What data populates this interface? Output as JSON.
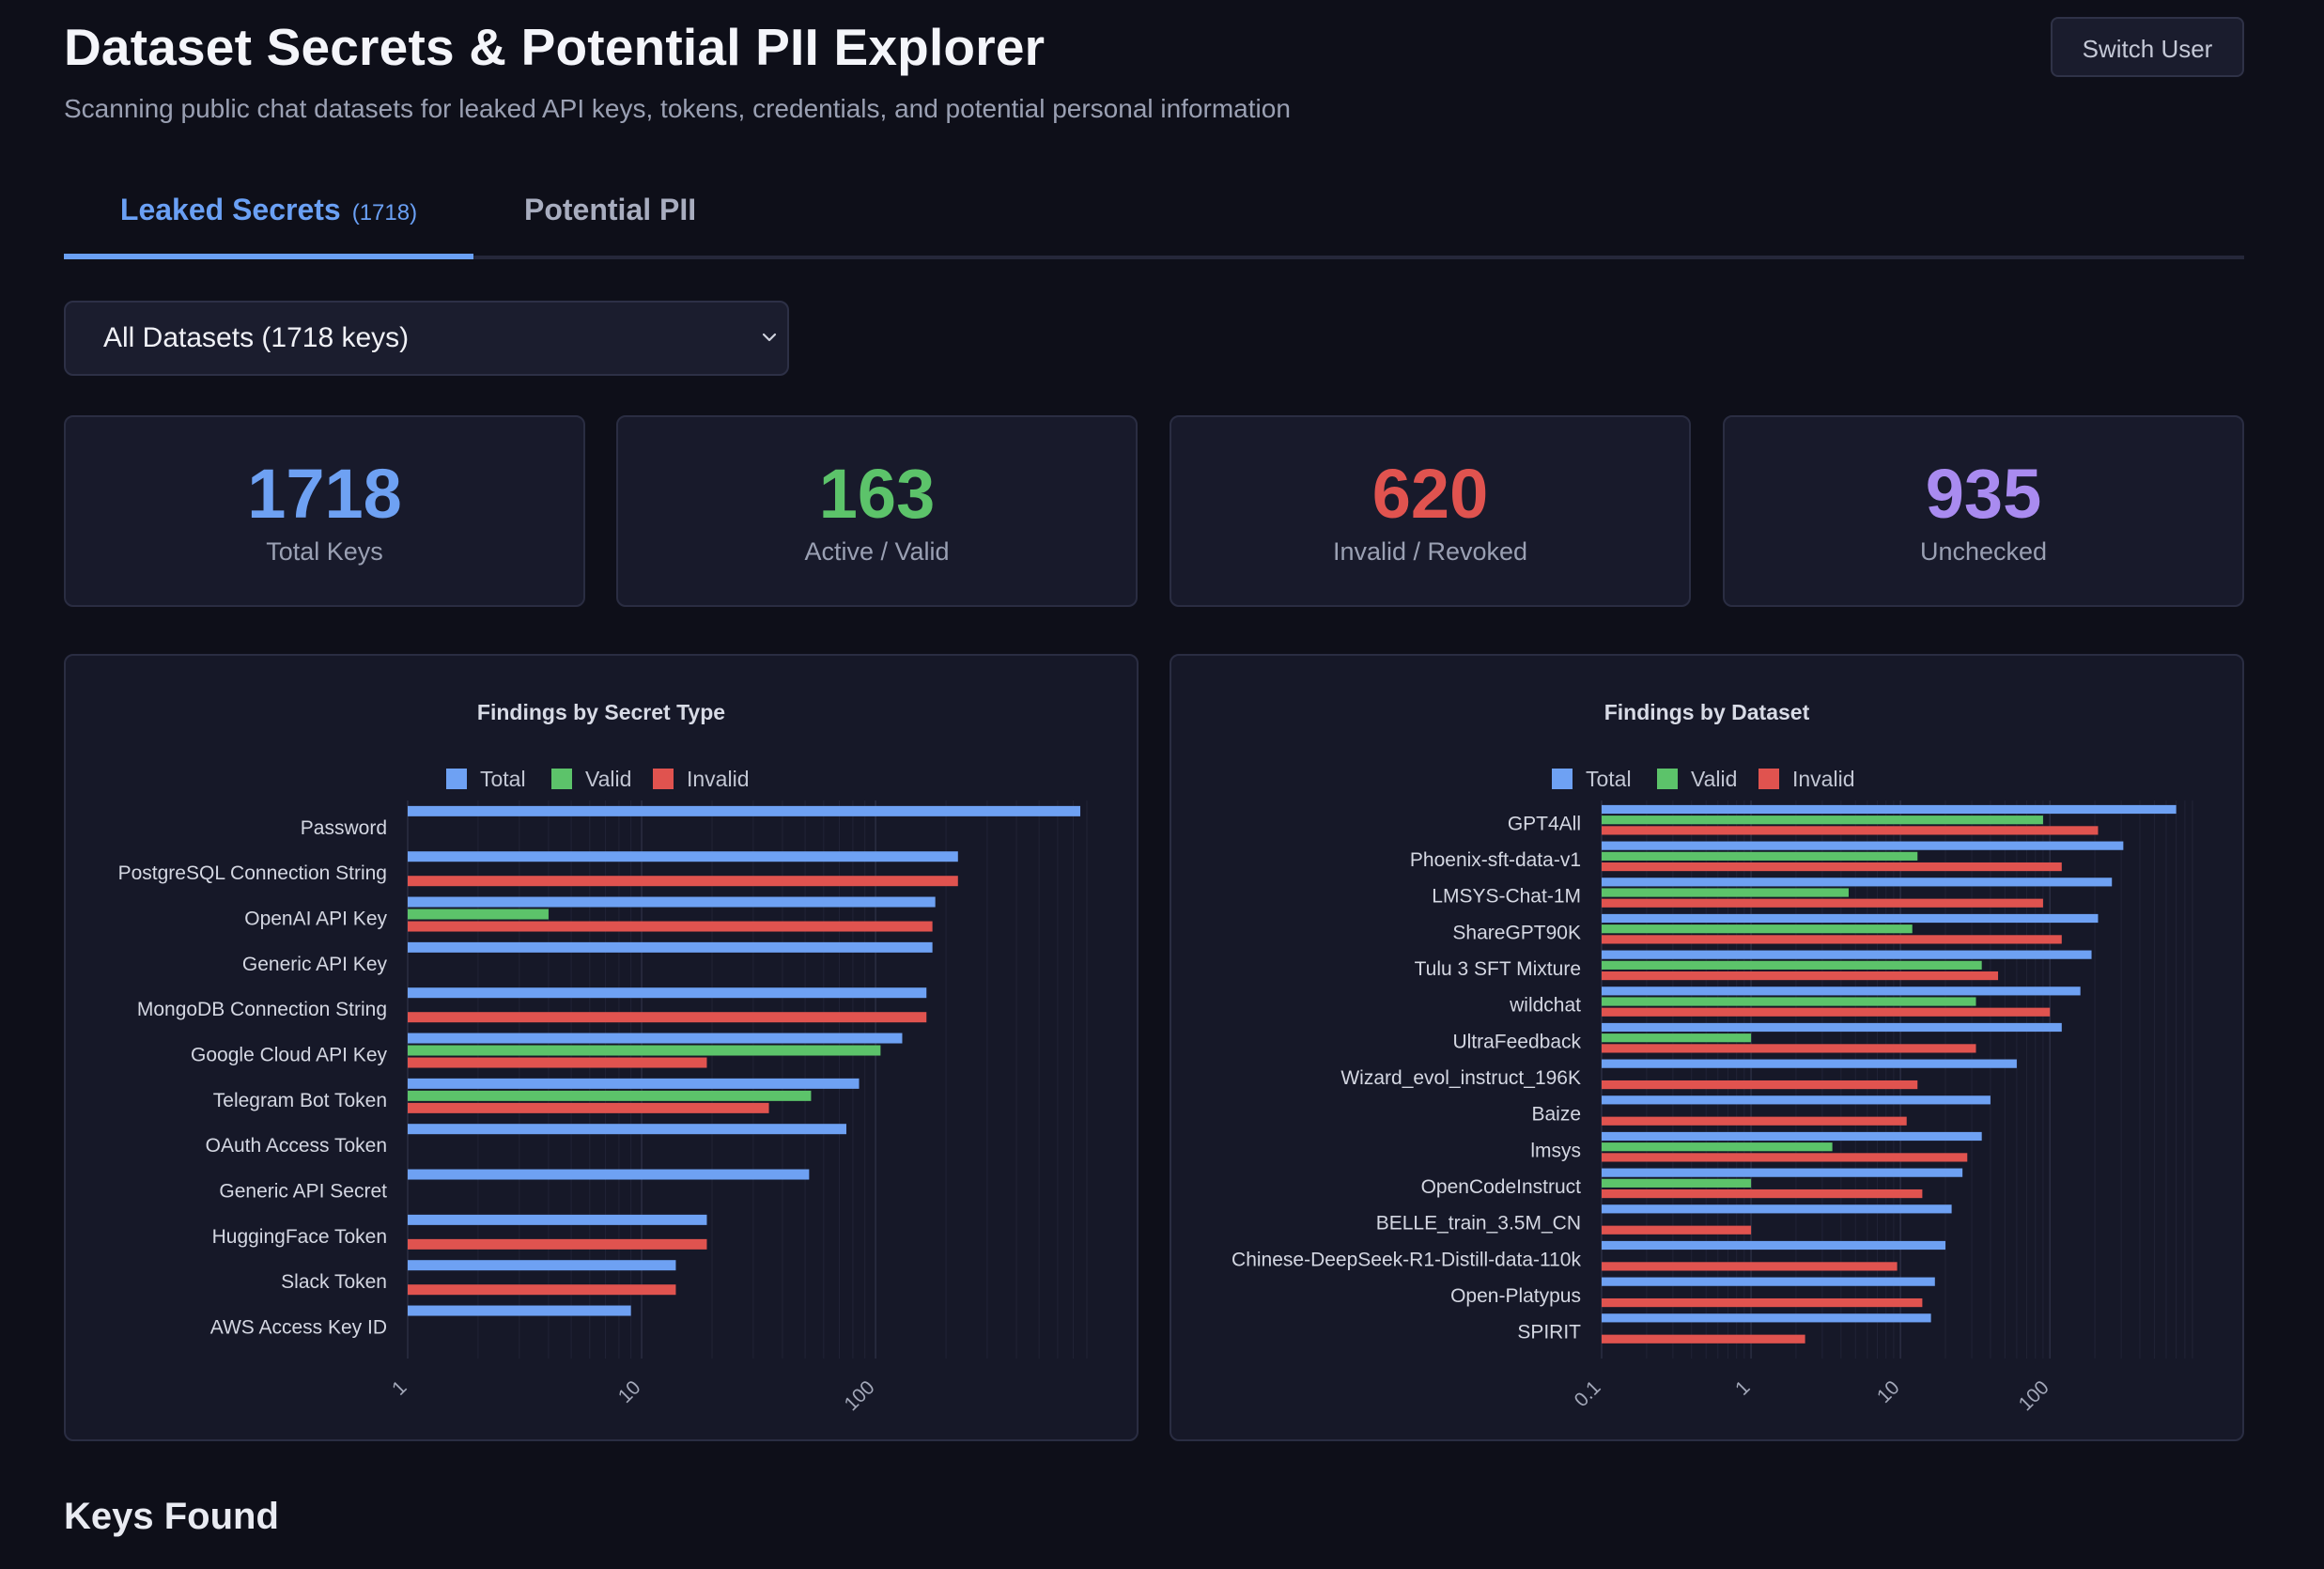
{
  "header": {
    "title": "Dataset Secrets & Potential PII Explorer",
    "subtitle": "Scanning public chat datasets for leaked API keys, tokens, credentials, and potential personal information",
    "switch_user_label": "Switch User"
  },
  "tabs": [
    {
      "label": "Leaked Secrets",
      "count": "(1718)"
    },
    {
      "label": "Potential PII"
    }
  ],
  "dataset_select": {
    "selected": "All Datasets (1718 keys)",
    "icon": "chevron-down-icon"
  },
  "stats": [
    {
      "value": "1718",
      "label": "Total Keys",
      "color": "#6ea1f3"
    },
    {
      "value": "163",
      "label": "Active / Valid",
      "color": "#5cc36a"
    },
    {
      "value": "620",
      "label": "Invalid / Revoked",
      "color": "#e0534f"
    },
    {
      "value": "935",
      "label": "Unchecked",
      "color": "#a98bf0"
    }
  ],
  "colors": {
    "total": "#6ea1f3",
    "valid": "#5cc36a",
    "invalid": "#e0534f"
  },
  "chart_data": [
    {
      "type": "bar",
      "orientation": "horizontal",
      "title": "Findings by Secret Type",
      "x_scale": "log",
      "x_ticks": [
        "1",
        "10",
        "100"
      ],
      "xlim": [
        1,
        800
      ],
      "legend": [
        "Total",
        "Valid",
        "Invalid"
      ],
      "legend_placement": "top",
      "categories": [
        "Password",
        "PostgreSQL Connection String",
        "OpenAI API Key",
        "Generic API Key",
        "MongoDB Connection String",
        "Google Cloud API Key",
        "Telegram Bot Token",
        "OAuth Access Token",
        "Generic API Secret",
        "HuggingFace Token",
        "Slack Token",
        "AWS Access Key ID"
      ],
      "series": [
        {
          "name": "Total",
          "values": [
            750,
            225,
            180,
            175,
            165,
            130,
            85,
            75,
            52,
            19,
            14,
            9
          ]
        },
        {
          "name": "Valid",
          "values": [
            null,
            null,
            4,
            null,
            null,
            105,
            53,
            null,
            null,
            null,
            null,
            null
          ]
        },
        {
          "name": "Invalid",
          "values": [
            null,
            225,
            175,
            null,
            165,
            19,
            35,
            null,
            null,
            19,
            14,
            null
          ]
        }
      ]
    },
    {
      "type": "bar",
      "orientation": "horizontal",
      "title": "Findings by Dataset",
      "x_scale": "log",
      "x_ticks": [
        "0.1",
        "1",
        "10",
        "100"
      ],
      "xlim": [
        0.1,
        900
      ],
      "legend": [
        "Total",
        "Valid",
        "Invalid"
      ],
      "legend_placement": "top",
      "categories": [
        "GPT4All",
        "Phoenix-sft-data-v1",
        "LMSYS-Chat-1M",
        "ShareGPT90K",
        "Tulu 3 SFT Mixture",
        "wildchat",
        "UltraFeedback",
        "Wizard_evol_instruct_196K",
        "Baize",
        "lmsys",
        "OpenCodeInstruct",
        "BELLE_train_3.5M_CN",
        "Chinese-DeepSeek-R1-Distill-data-110k",
        "Open-Platypus",
        "SPIRIT"
      ],
      "series": [
        {
          "name": "Total",
          "values": [
            700,
            310,
            260,
            210,
            190,
            160,
            120,
            60,
            40,
            35,
            26,
            22,
            20,
            17,
            16
          ]
        },
        {
          "name": "Valid",
          "values": [
            90,
            13,
            4.5,
            12,
            35,
            32,
            1,
            null,
            null,
            3.5,
            1,
            null,
            null,
            null,
            null
          ]
        },
        {
          "name": "Invalid",
          "values": [
            210,
            120,
            90,
            120,
            45,
            100,
            32,
            13,
            11,
            28,
            14,
            1,
            9.5,
            14,
            2.3
          ]
        }
      ]
    }
  ],
  "keys_section": {
    "title": "Keys Found"
  }
}
